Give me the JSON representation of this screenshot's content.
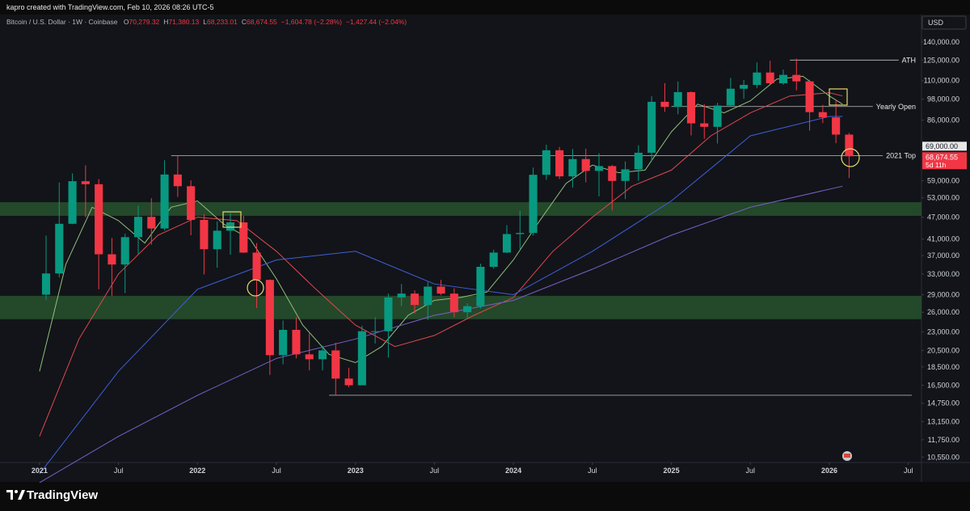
{
  "header": {
    "credit": "kapro created with TradingView.com, Feb 10, 2026 08:26 UTC-5"
  },
  "chart_data": {
    "type": "candlestick",
    "title": "Bitcoin / U.S. Dollar · 1W · Coinbase",
    "ohlc_readout": [
      {
        "prefix": "O",
        "text": "70,279.32"
      },
      {
        "prefix": "H",
        "text": "71,380.13"
      },
      {
        "prefix": "L",
        "text": "68,233.01"
      },
      {
        "prefix": "C",
        "text": "68,674.55"
      }
    ],
    "change_readout": [
      "−1,604.78 (−2.28%)",
      "−1,427.44 (−2.04%)"
    ],
    "currency": "USD",
    "x": [
      "2021-01",
      "2021-02",
      "2021-03",
      "2021-04",
      "2021-05",
      "2021-06",
      "2021-07",
      "2021-08",
      "2021-09",
      "2021-10",
      "2021-11",
      "2021-12",
      "2022-01",
      "2022-02",
      "2022-03",
      "2022-04",
      "2022-05",
      "2022-06",
      "2022-07",
      "2022-08",
      "2022-09",
      "2022-10",
      "2022-11",
      "2022-12",
      "2023-01",
      "2023-02",
      "2023-03",
      "2023-04",
      "2023-05",
      "2023-06",
      "2023-07",
      "2023-08",
      "2023-09",
      "2023-10",
      "2023-11",
      "2023-12",
      "2024-01",
      "2024-02",
      "2024-03",
      "2024-04",
      "2024-05",
      "2024-06",
      "2024-07",
      "2024-08",
      "2024-09",
      "2024-10",
      "2024-11",
      "2024-12",
      "2025-01",
      "2025-02",
      "2025-03",
      "2025-04",
      "2025-05",
      "2025-06",
      "2025-07",
      "2025-08",
      "2025-09",
      "2025-10",
      "2025-11",
      "2025-12",
      "2026-01",
      "2026-02"
    ],
    "open": [
      29000,
      33100,
      45100,
      58800,
      57700,
      37300,
      35000,
      41500,
      47100,
      43800,
      61300,
      57000,
      46200,
      38500,
      43200,
      45500,
      37700,
      31800,
      19900,
      23300,
      20000,
      19400,
      20500,
      17200,
      16500,
      23100,
      23100,
      28500,
      29200,
      27200,
      30500,
      29200,
      26000,
      27000,
      34500,
      37700,
      42300,
      42600,
      61200,
      71300,
      60600,
      67500,
      62700,
      64600,
      58900,
      63300,
      70200,
      96400,
      93400,
      102400,
      84300,
      82500,
      94200,
      104600,
      107100,
      115700,
      108200,
      114000,
      109500,
      90400,
      87500,
      78600
    ],
    "high": [
      41900,
      58300,
      61700,
      64900,
      59600,
      41300,
      42400,
      50500,
      52900,
      67000,
      69000,
      59100,
      47900,
      45800,
      48200,
      47400,
      40000,
      31900,
      24700,
      25200,
      22800,
      21100,
      21500,
      18400,
      23900,
      25200,
      29200,
      31000,
      29800,
      31400,
      31800,
      30200,
      27500,
      35200,
      38400,
      44700,
      48900,
      64000,
      73800,
      72800,
      71900,
      72000,
      70000,
      65100,
      66500,
      73600,
      99800,
      108300,
      109400,
      102800,
      95000,
      95800,
      111900,
      110500,
      123200,
      124500,
      117900,
      126200,
      110600,
      94600,
      97900,
      79400
    ],
    "low": [
      28100,
      32300,
      45000,
      47000,
      30000,
      28800,
      29300,
      37300,
      39600,
      43300,
      53300,
      42000,
      32900,
      34300,
      37200,
      37600,
      26700,
      17600,
      18800,
      19500,
      18100,
      18100,
      15500,
      16300,
      16500,
      21400,
      19600,
      27000,
      25800,
      24800,
      28900,
      25200,
      24900,
      26600,
      34100,
      37600,
      38500,
      41900,
      59300,
      59600,
      56500,
      58400,
      53500,
      49000,
      52600,
      58900,
      66800,
      90500,
      89200,
      78200,
      76600,
      74400,
      93300,
      98200,
      105100,
      107400,
      107200,
      103500,
      80600,
      84400,
      74500,
      60000
    ],
    "close": [
      33100,
      45100,
      58800,
      57700,
      37300,
      35000,
      41500,
      47100,
      43800,
      61300,
      57000,
      46200,
      38500,
      43200,
      45500,
      37700,
      31800,
      19900,
      23300,
      20000,
      19400,
      20500,
      17200,
      16500,
      23100,
      23100,
      28500,
      29200,
      27200,
      30500,
      29200,
      26000,
      27000,
      34500,
      37700,
      42300,
      42600,
      61200,
      71300,
      60600,
      67500,
      62700,
      64600,
      58900,
      63300,
      70200,
      96400,
      93400,
      102400,
      84300,
      82500,
      94200,
      104600,
      107100,
      115700,
      108200,
      114000,
      109500,
      90400,
      87500,
      78600,
      68674.55
    ],
    "up_color": "#089981",
    "down_color": "#f23645",
    "moving_averages": [
      {
        "color": "#8fbf7a",
        "x": [
          "2021-01",
          "2021-03",
          "2021-05",
          "2021-07",
          "2021-09",
          "2021-11",
          "2022-01",
          "2022-03",
          "2022-05",
          "2022-07",
          "2022-09",
          "2022-11",
          "2023-01",
          "2023-03",
          "2023-05",
          "2023-07",
          "2023-09",
          "2023-11",
          "2024-01",
          "2024-03",
          "2024-05",
          "2024-07",
          "2024-09",
          "2024-11",
          "2025-01",
          "2025-03",
          "2025-05",
          "2025-07",
          "2025-09",
          "2025-11",
          "2026-01",
          "2026-02"
        ],
        "values": [
          18000,
          35000,
          50000,
          46000,
          40000,
          50000,
          52000,
          45000,
          41000,
          32000,
          24000,
          20000,
          19000,
          21000,
          25500,
          28000,
          28500,
          29500,
          36000,
          46000,
          58000,
          65000,
          62000,
          63000,
          80000,
          95000,
          90000,
          97000,
          111000,
          113000,
          100000,
          95000
        ]
      },
      {
        "color": "#e0484e",
        "x": [
          "2021-01",
          "2021-04",
          "2021-07",
          "2021-10",
          "2022-01",
          "2022-04",
          "2022-07",
          "2022-10",
          "2023-01",
          "2023-04",
          "2023-07",
          "2023-10",
          "2024-01",
          "2024-04",
          "2024-07",
          "2024-10",
          "2025-01",
          "2025-04",
          "2025-07",
          "2025-10",
          "2026-01",
          "2026-02"
        ],
        "values": [
          12000,
          22000,
          33000,
          42000,
          47000,
          46000,
          38000,
          30000,
          24000,
          21000,
          22500,
          25500,
          28500,
          38000,
          47000,
          57000,
          63000,
          78000,
          90000,
          100000,
          102000,
          100000
        ]
      },
      {
        "color": "#3f5fd8",
        "x": [
          "2021-01",
          "2021-07",
          "2022-01",
          "2022-07",
          "2023-01",
          "2023-07",
          "2024-01",
          "2024-07",
          "2025-01",
          "2025-07",
          "2026-01",
          "2026-02"
        ],
        "values": [
          9500,
          18000,
          30000,
          36000,
          38000,
          31000,
          29000,
          38000,
          52000,
          78000,
          88000,
          88000
        ]
      },
      {
        "color": "#7b5fc9",
        "x": [
          "2021-01",
          "2021-07",
          "2022-01",
          "2022-07",
          "2023-01",
          "2023-07",
          "2024-01",
          "2024-07",
          "2025-01",
          "2025-07",
          "2026-02"
        ],
        "values": [
          9000,
          12000,
          15500,
          19500,
          22000,
          25500,
          28000,
          34000,
          42000,
          50000,
          57000
        ]
      }
    ],
    "zones": [
      [
        47400,
        51600
      ],
      [
        24900,
        28800
      ]
    ],
    "zone_color": "#2b5a30",
    "levels": [
      {
        "value": 125000,
        "label": "ATH",
        "from": "2025-10"
      },
      {
        "value": 93600,
        "label": "Yearly Open",
        "from": "2025-01"
      },
      {
        "value": 69000,
        "label": "2021 Top",
        "from": "2021-11"
      },
      {
        "value": 15500,
        "from": "2022-11"
      }
    ],
    "price_labels": [
      {
        "value": 69000,
        "label": "69,000.00"
      },
      {
        "value": 68674.55,
        "label": "68,674.55",
        "sublabel": "5d 11h"
      }
    ],
    "yscale": "log",
    "ylim": [
      10200,
      166000
    ],
    "yticks": [
      {
        "value": 140000,
        "label": "140,000.00"
      },
      {
        "value": 125000,
        "label": "125,000.00"
      },
      {
        "value": 110000,
        "label": "110,000.00"
      },
      {
        "value": 98000,
        "label": "98,000.00"
      },
      {
        "value": 86000,
        "label": "86,000.00"
      },
      {
        "value": 59000,
        "label": "59,000.00"
      },
      {
        "value": 53000,
        "label": "53,000.00"
      },
      {
        "value": 47000,
        "label": "47,000.00"
      },
      {
        "value": 41000,
        "label": "41,000.00"
      },
      {
        "value": 37000,
        "label": "37,000.00"
      },
      {
        "value": 33000,
        "label": "33,000.00"
      },
      {
        "value": 29000,
        "label": "29,000.00"
      },
      {
        "value": 26000,
        "label": "26,000.00"
      },
      {
        "value": 23000,
        "label": "23,000.00"
      },
      {
        "value": 20500,
        "label": "20,500.00"
      },
      {
        "value": 18500,
        "label": "18,500.00"
      },
      {
        "value": 16500,
        "label": "16,500.00"
      },
      {
        "value": 14750,
        "label": "14,750.00"
      },
      {
        "value": 13150,
        "label": "13,150.00"
      },
      {
        "value": 11750,
        "label": "11,750.00"
      },
      {
        "value": 10550,
        "label": "10,550.00"
      }
    ],
    "xlim": [
      "2020-10",
      "2026-08"
    ],
    "xticks": [
      {
        "value": "2021-01",
        "label": "2021"
      },
      {
        "value": "2021-07",
        "label": "Jul"
      },
      {
        "value": "2022-01",
        "label": "2022"
      },
      {
        "value": "2022-07",
        "label": "Jul"
      },
      {
        "value": "2023-01",
        "label": "2023"
      },
      {
        "value": "2023-07",
        "label": "Jul"
      },
      {
        "value": "2024-01",
        "label": "2024"
      },
      {
        "value": "2024-07",
        "label": "Jul"
      },
      {
        "value": "2025-01",
        "label": "2025"
      },
      {
        "value": "2025-07",
        "label": "Jul"
      },
      {
        "value": "2026-01",
        "label": "2026"
      },
      {
        "value": "2026-07",
        "label": "Jul"
      }
    ]
  },
  "footer": {
    "brand": "TradingView"
  }
}
